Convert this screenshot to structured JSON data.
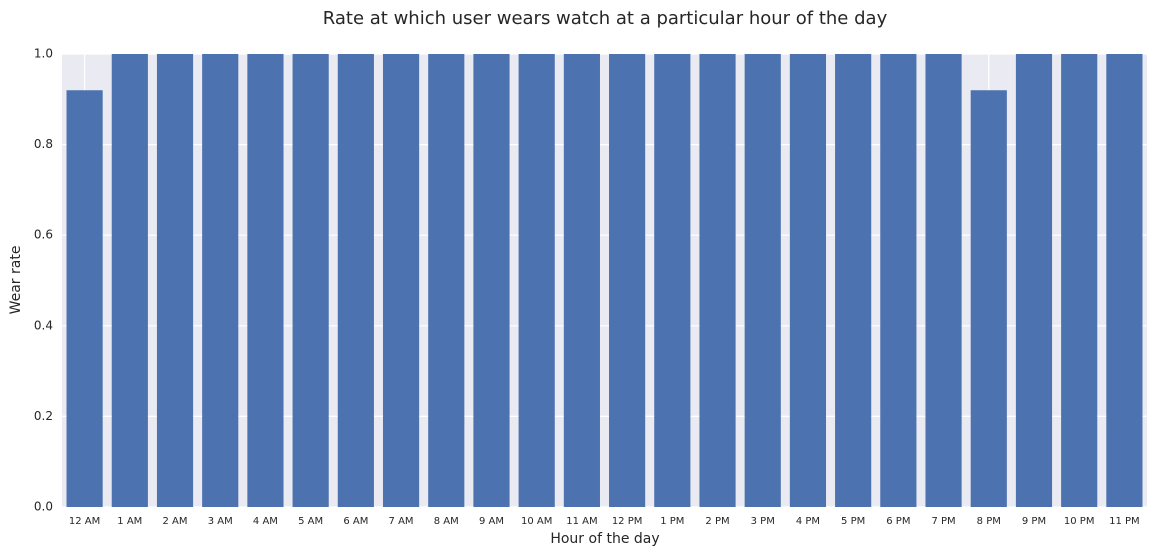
{
  "chart_data": {
    "type": "bar",
    "title": "Rate at which user wears watch at a particular hour of the day",
    "x_label": "Hour of the day",
    "y_label": "Wear rate",
    "categories": [
      "12 AM",
      "1 AM",
      "2 AM",
      "3 AM",
      "4 AM",
      "5 AM",
      "6 AM",
      "7 AM",
      "8 AM",
      "9 AM",
      "10 AM",
      "11 AM",
      "12 PM",
      "1 PM",
      "2 PM",
      "3 PM",
      "4 PM",
      "5 PM",
      "6 PM",
      "7 PM",
      "8 PM",
      "9 PM",
      "10 PM",
      "11 PM"
    ],
    "values": [
      0.92,
      1,
      1,
      1,
      1,
      1,
      1,
      1,
      1,
      1,
      1,
      1,
      1,
      1,
      1,
      1,
      1,
      1,
      1,
      1,
      0.92,
      1,
      1,
      1
    ],
    "color": "#4c72b0",
    "ylim": [
      0,
      1
    ],
    "yticks": [
      {
        "value": 0,
        "label": "0.0"
      },
      0.2,
      0.4,
      0.6,
      0.8,
      {
        "value": 1,
        "label": "1.0"
      }
    ],
    "grid": true
  }
}
